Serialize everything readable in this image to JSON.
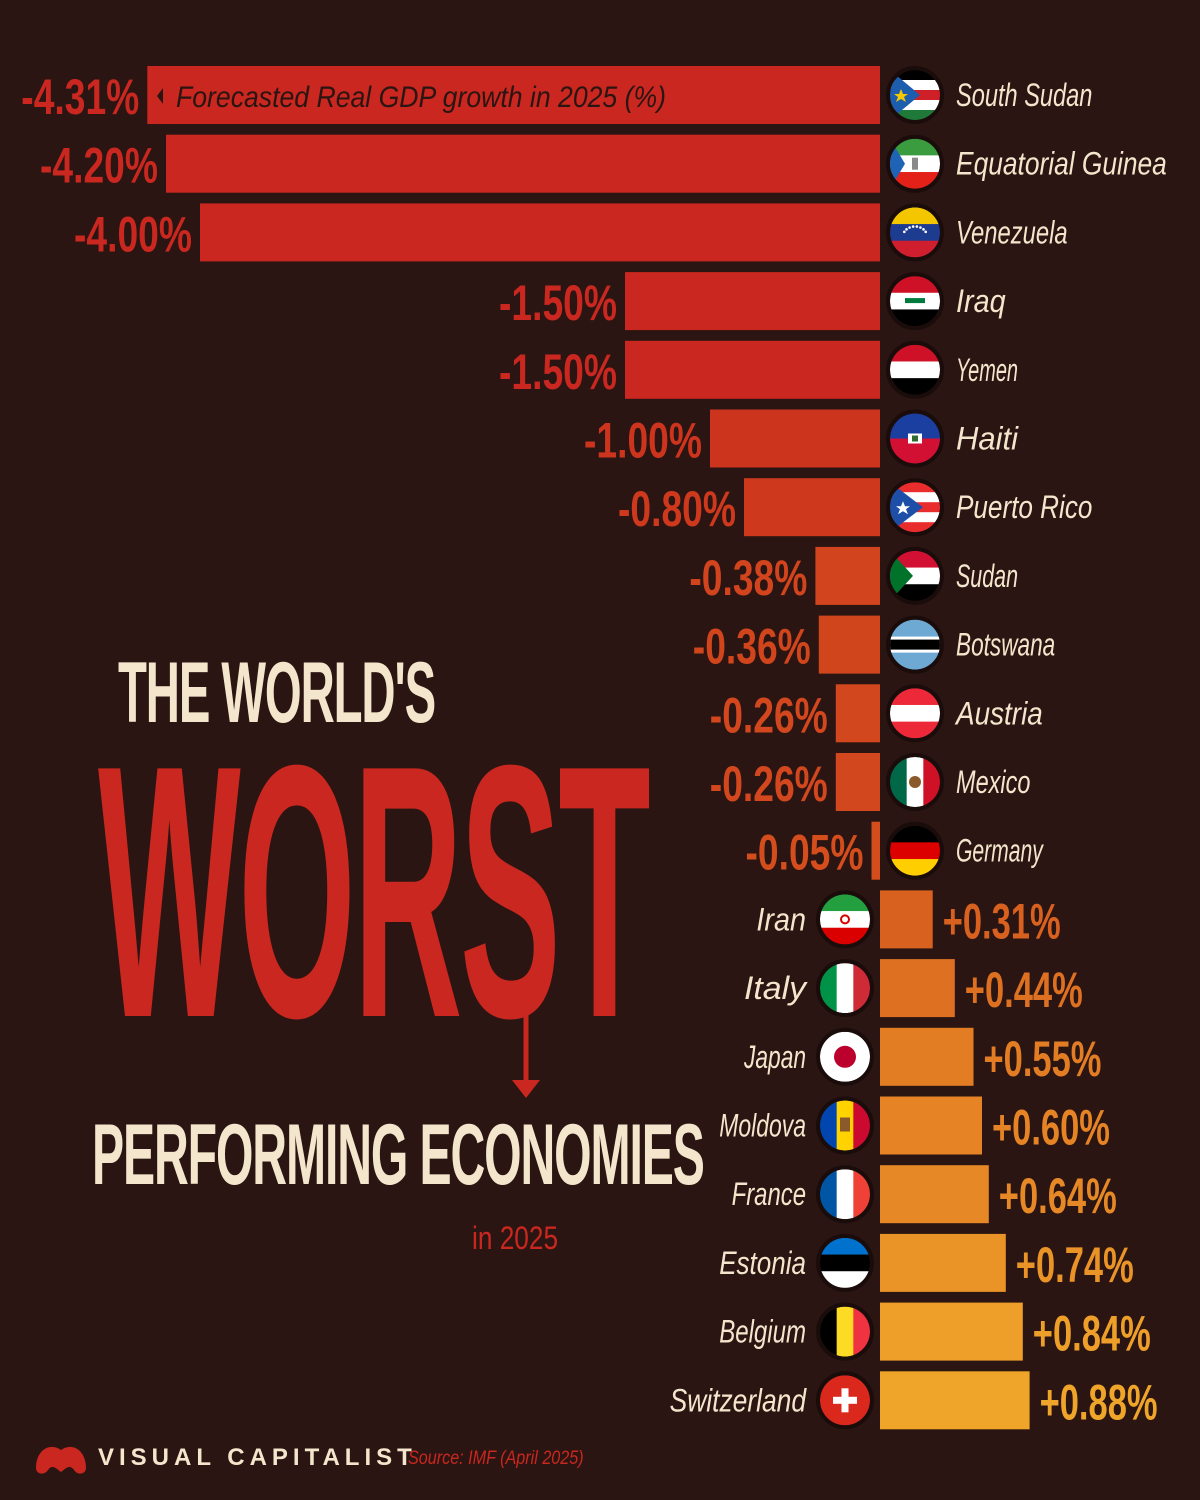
{
  "title": {
    "line1": "THE WORLD'S",
    "line2": "WORST",
    "line3": "PERFORMING ECONOMIES",
    "line4": "in 2025"
  },
  "footer": {
    "brand": "VISUAL CAPITALIST",
    "source": "Source: IMF (April 2025)"
  },
  "colors": {
    "background": "#2a1512",
    "negative_strong": "#c9271f",
    "positive_strong": "#f0a62a",
    "cream": "#f4e6cc"
  },
  "chart_data": {
    "type": "bar",
    "orientation": "horizontal",
    "annotation": "Forecasted Real GDP growth in 2025 (%)",
    "categories": [
      "South Sudan",
      "Equatorial Guinea",
      "Venezuela",
      "Iraq",
      "Yemen",
      "Haiti",
      "Puerto Rico",
      "Sudan",
      "Botswana",
      "Austria",
      "Mexico",
      "Germany",
      "Iran",
      "Italy",
      "Japan",
      "Moldova",
      "France",
      "Estonia",
      "Belgium",
      "Switzerland"
    ],
    "values": [
      -4.31,
      -4.2,
      -4.0,
      -1.5,
      -1.5,
      -1.0,
      -0.8,
      -0.38,
      -0.36,
      -0.26,
      -0.26,
      -0.05,
      0.31,
      0.44,
      0.55,
      0.6,
      0.64,
      0.74,
      0.84,
      0.88
    ],
    "value_labels": [
      "-4.31%",
      "-4.20%",
      "-4.00%",
      "-1.50%",
      "-1.50%",
      "-1.00%",
      "-0.80%",
      "-0.38%",
      "-0.36%",
      "-0.26%",
      "-0.26%",
      "-0.05%",
      "+0.31%",
      "+0.44%",
      "+0.55%",
      "+0.60%",
      "+0.64%",
      "+0.74%",
      "+0.84%",
      "+0.88%"
    ],
    "flag_icons": [
      "south-sudan-flag-icon",
      "equatorial-guinea-flag-icon",
      "venezuela-flag-icon",
      "iraq-flag-icon",
      "yemen-flag-icon",
      "haiti-flag-icon",
      "puerto-rico-flag-icon",
      "sudan-flag-icon",
      "botswana-flag-icon",
      "austria-flag-icon",
      "mexico-flag-icon",
      "germany-flag-icon",
      "iran-flag-icon",
      "italy-flag-icon",
      "japan-flag-icon",
      "moldova-flag-icon",
      "france-flag-icon",
      "estonia-flag-icon",
      "belgium-flag-icon",
      "switzerland-flag-icon"
    ]
  }
}
